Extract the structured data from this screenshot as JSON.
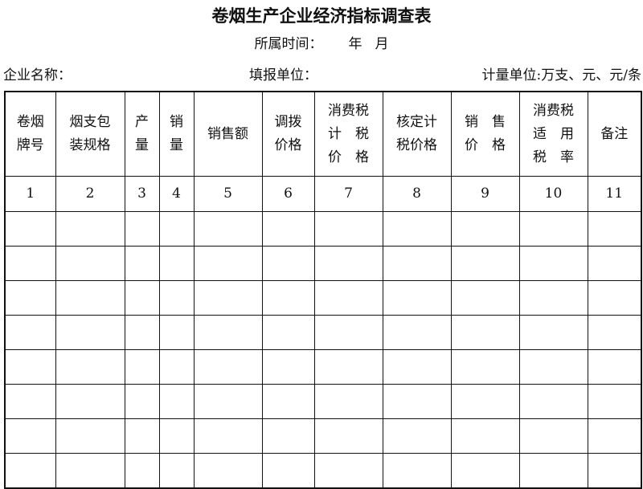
{
  "title": "卷烟生产企业经济指标调查表",
  "period": {
    "label": "所属时间：",
    "year": "年",
    "month": "月"
  },
  "company_label": "企业名称：",
  "filler_label": "填报单位：",
  "unit_label": "计量单位:万支、元、元/条",
  "columns": [
    {
      "header": "卷烟\n牌号",
      "no": "1"
    },
    {
      "header": "烟支包\n装规格",
      "no": "2"
    },
    {
      "header": "产\n量",
      "no": "3"
    },
    {
      "header": "销\n量",
      "no": "4"
    },
    {
      "header": "销售额",
      "no": "5"
    },
    {
      "header": "调拨\n价格",
      "no": "6"
    },
    {
      "header": "消费税\n计　税\n价　格",
      "no": "7"
    },
    {
      "header": "核定计\n税价格",
      "no": "8"
    },
    {
      "header": "销　售\n价　格",
      "no": "9"
    },
    {
      "header": "消费税\n适　用\n税　率",
      "no": "10"
    },
    {
      "header": "备注",
      "no": "11"
    }
  ]
}
